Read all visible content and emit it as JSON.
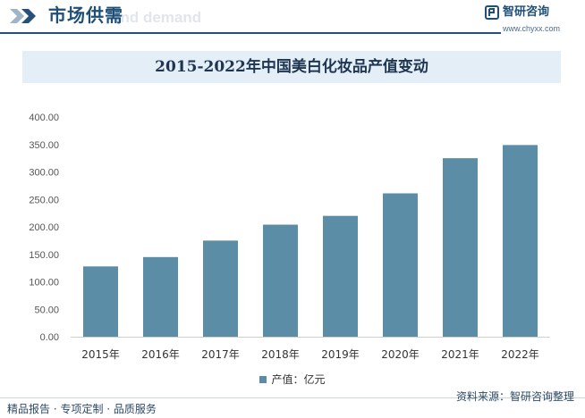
{
  "header": {
    "title": "市场供需",
    "watermark_text": "and demand",
    "brand_name": "智研咨询",
    "brand_url": "www.chyxx.com"
  },
  "footer": {
    "left_text": "精品报告 · 专项定制 · 品质服务",
    "source_text": "资料来源：智研咨询整理"
  },
  "colors": {
    "bar": "#5b8ea6",
    "accent": "#1e4f76",
    "title_bg": "#e3eef7"
  },
  "chart_data": {
    "type": "bar",
    "title": "2015-2022年中国美白化妆品产值变动",
    "categories": [
      "2015年",
      "2016年",
      "2017年",
      "2018年",
      "2019年",
      "2020年",
      "2021年",
      "2022年"
    ],
    "series": [
      {
        "name": "产值：亿元",
        "values": [
          128,
          145,
          175,
          204,
          220,
          261,
          325,
          349
        ]
      }
    ],
    "ylim": [
      0,
      400
    ],
    "yticks": [
      "0.00",
      "50.00",
      "100.00",
      "150.00",
      "200.00",
      "250.00",
      "300.00",
      "350.00",
      "400.00"
    ],
    "legend": "bottom-center",
    "grid": false
  }
}
